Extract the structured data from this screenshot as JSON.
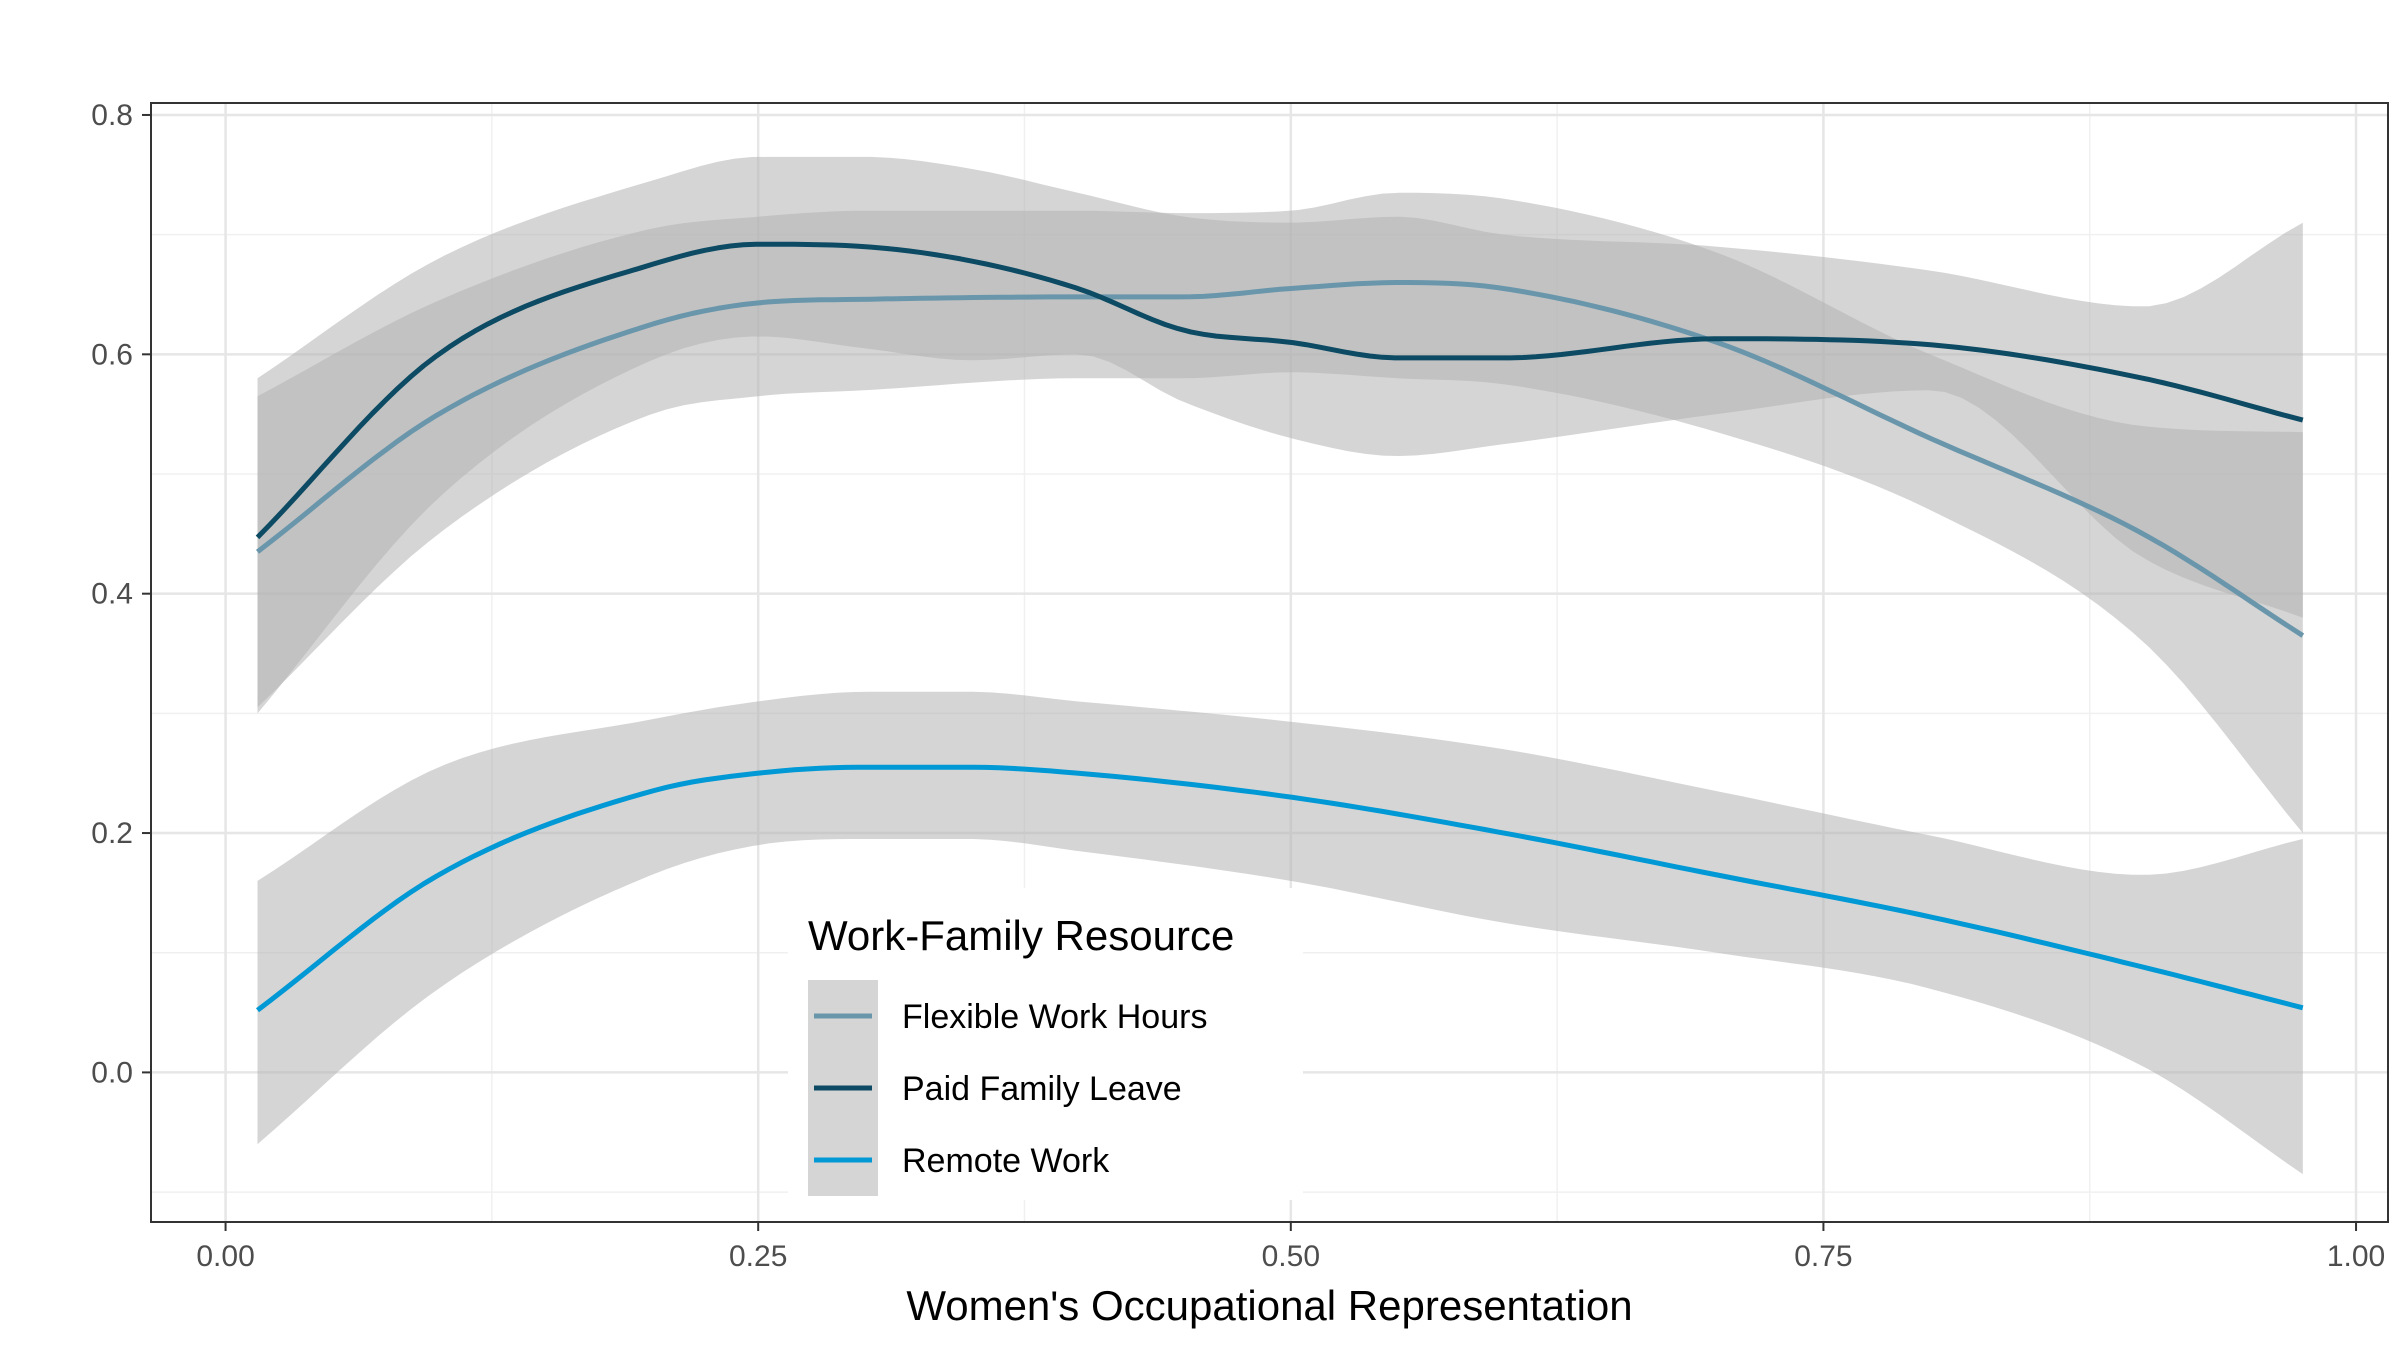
{
  "chart_data": {
    "type": "line",
    "xlabel": "Women's Occupational Representation",
    "ylabel": "",
    "xlim": [
      -0.035,
      1.015
    ],
    "ylim": [
      -0.125,
      0.81
    ],
    "xticks": [
      0.0,
      0.25,
      0.5,
      0.75,
      1.0
    ],
    "xtick_labels": [
      "0.00",
      "0.25",
      "0.50",
      "0.75",
      "1.00"
    ],
    "yticks": [
      0.0,
      0.2,
      0.4,
      0.6,
      0.8
    ],
    "ytick_labels": [
      "0.0",
      "0.2",
      "0.4",
      "0.6",
      "0.8"
    ],
    "grid": true,
    "legend": {
      "title": "Work-Family Resource",
      "position": "bottom-center (inside plot)"
    },
    "ribbon_color": "#b3b3b3",
    "series": [
      {
        "name": "Flexible Work Hours",
        "color": "#6A96AB",
        "x": [
          0.015,
          0.1,
          0.2,
          0.25,
          0.3,
          0.4,
          0.45,
          0.5,
          0.55,
          0.6,
          0.7,
          0.8,
          0.9,
          0.975
        ],
        "y": [
          0.435,
          0.55,
          0.625,
          0.643,
          0.646,
          0.648,
          0.648,
          0.655,
          0.66,
          0.655,
          0.61,
          0.53,
          0.45,
          0.365
        ],
        "lower": [
          0.305,
          0.45,
          0.55,
          0.565,
          0.57,
          0.58,
          0.58,
          0.585,
          0.58,
          0.575,
          0.535,
          0.47,
          0.36,
          0.2
        ],
        "upper": [
          0.565,
          0.645,
          0.705,
          0.715,
          0.72,
          0.72,
          0.718,
          0.72,
          0.735,
          0.73,
          0.685,
          0.6,
          0.54,
          0.535
        ]
      },
      {
        "name": "Paid Family Leave",
        "color": "#0D4A63",
        "x": [
          0.015,
          0.1,
          0.2,
          0.25,
          0.3,
          0.35,
          0.4,
          0.45,
          0.5,
          0.55,
          0.6,
          0.7,
          0.8,
          0.9,
          0.975
        ],
        "y": [
          0.447,
          0.6,
          0.675,
          0.692,
          0.69,
          0.678,
          0.655,
          0.62,
          0.61,
          0.597,
          0.597,
          0.613,
          0.608,
          0.58,
          0.545
        ],
        "lower": [
          0.3,
          0.48,
          0.595,
          0.615,
          0.605,
          0.595,
          0.6,
          0.56,
          0.53,
          0.515,
          0.525,
          0.55,
          0.57,
          0.43,
          0.38
        ],
        "upper": [
          0.58,
          0.68,
          0.745,
          0.765,
          0.765,
          0.755,
          0.735,
          0.715,
          0.71,
          0.715,
          0.7,
          0.69,
          0.67,
          0.64,
          0.71
        ]
      },
      {
        "name": "Remote Work",
        "color": "#0099D5",
        "x": [
          0.015,
          0.1,
          0.2,
          0.25,
          0.3,
          0.35,
          0.4,
          0.5,
          0.6,
          0.7,
          0.8,
          0.9,
          0.975
        ],
        "y": [
          0.052,
          0.165,
          0.235,
          0.25,
          0.255,
          0.255,
          0.25,
          0.23,
          0.2,
          0.165,
          0.13,
          0.088,
          0.054
        ],
        "lower": [
          -0.06,
          0.07,
          0.165,
          0.19,
          0.195,
          0.195,
          0.185,
          0.16,
          0.125,
          0.1,
          0.07,
          0.005,
          -0.085
        ],
        "upper": [
          0.16,
          0.255,
          0.295,
          0.31,
          0.318,
          0.318,
          0.31,
          0.293,
          0.27,
          0.235,
          0.198,
          0.165,
          0.195
        ]
      }
    ]
  }
}
